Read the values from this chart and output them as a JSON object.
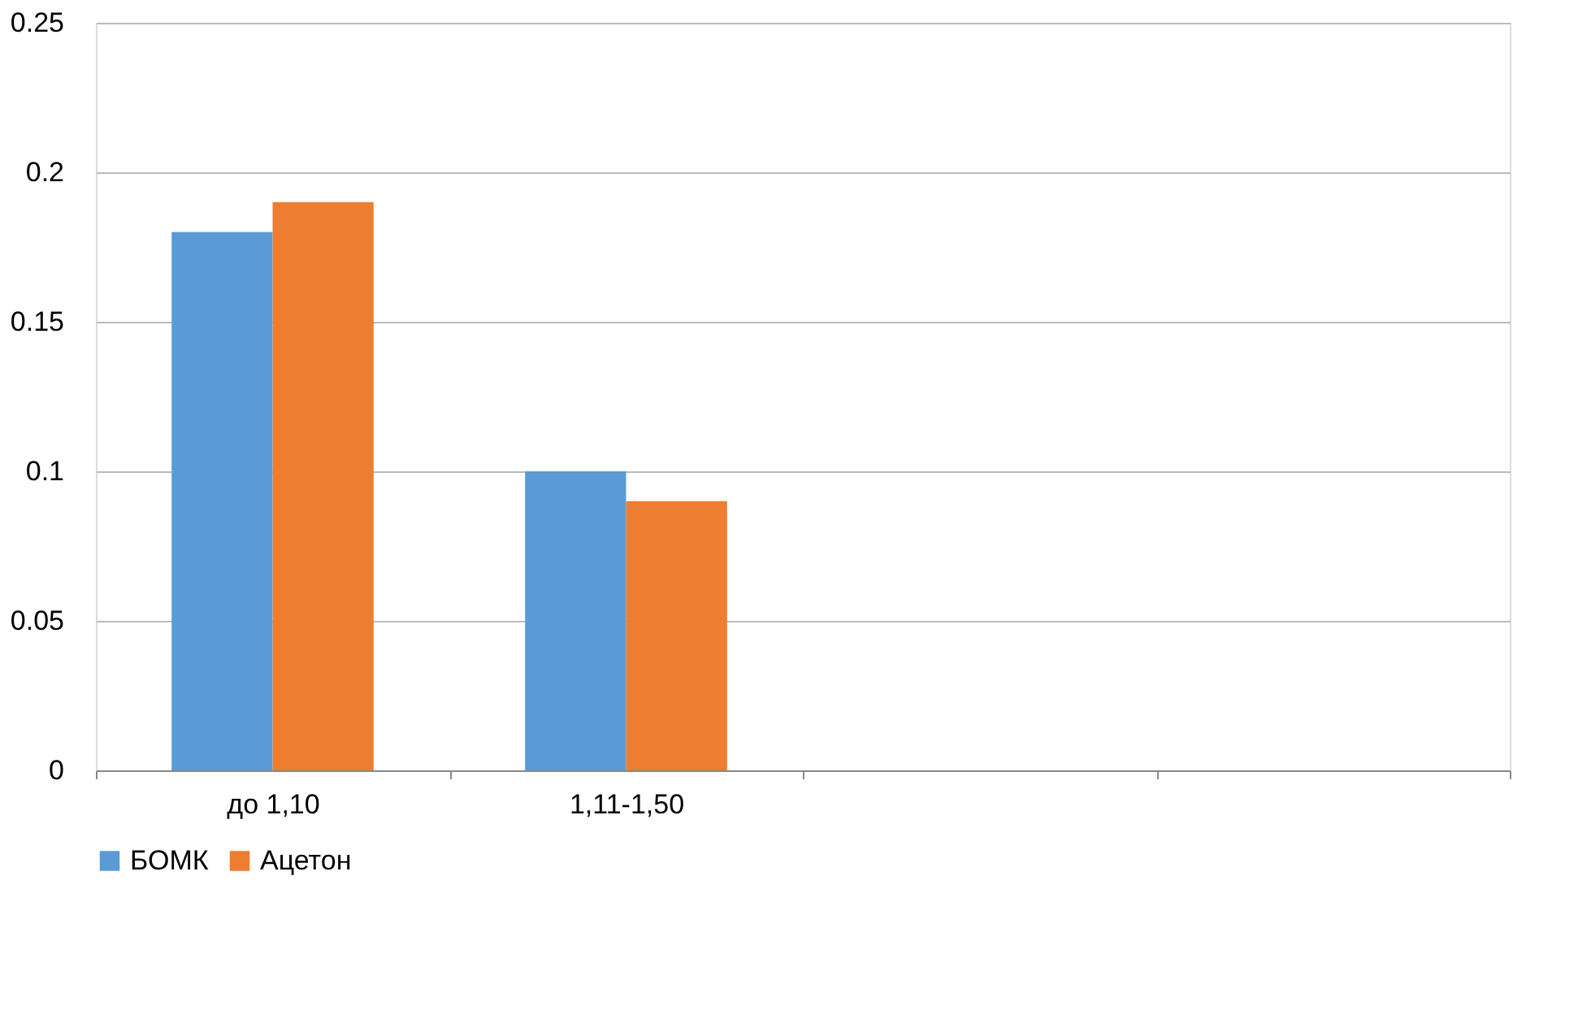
{
  "chart_data": {
    "type": "bar",
    "categories": [
      "до 1,10",
      "1,11-1,50",
      null,
      null
    ],
    "series": [
      {
        "name": "БОМК",
        "color": "#5b9bd5",
        "values": [
          0.18,
          0.1,
          null,
          null
        ]
      },
      {
        "name": "Ацетон",
        "color": "#ed7d31",
        "values": [
          0.19,
          0.09,
          null,
          null
        ]
      }
    ],
    "ylim": [
      0,
      0.25
    ],
    "yticks": [
      0,
      0.05,
      0.1,
      0.15,
      0.2,
      0.25
    ],
    "grid": "y",
    "legend": "bottom"
  }
}
